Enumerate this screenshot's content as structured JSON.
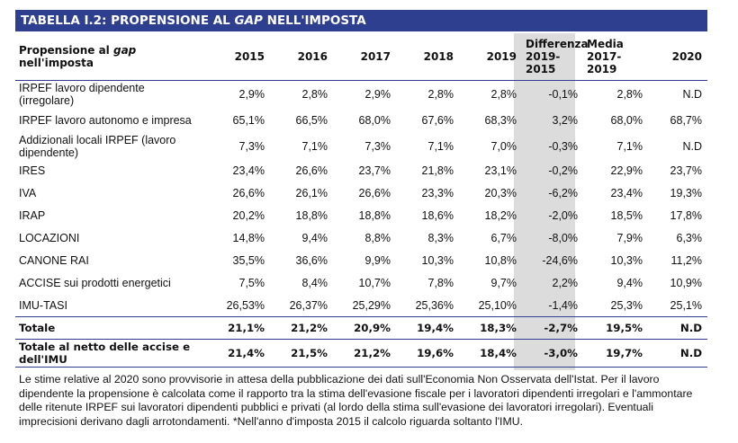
{
  "title": {
    "prefix": "TABELLA I.2: PROPENSIONE AL ",
    "italic": "GAP",
    "suffix": " NELL'IMPOSTA"
  },
  "header": {
    "first_pre": "Propensione al ",
    "first_italic": "gap",
    "first_post": " nell'imposta",
    "years": [
      "2015",
      "2016",
      "2017",
      "2018",
      "2019"
    ],
    "diff": [
      "Differenza",
      "2019-",
      "2015"
    ],
    "media": [
      "Media",
      "2017-",
      "2019"
    ],
    "last": "2020"
  },
  "rows": [
    {
      "label": "IRPEF lavoro dipendente (irregolare)",
      "values": [
        "2,9%",
        "2,8%",
        "2,9%",
        "2,8%",
        "2,8%"
      ],
      "diff": "-0,1%",
      "media": "2,8%",
      "y2020": "N.D"
    },
    {
      "label": "IRPEF lavoro autonomo e impresa",
      "values": [
        "65,1%",
        "66,5%",
        "68,0%",
        "67,6%",
        "68,3%"
      ],
      "diff": "3,2%",
      "media": "68,0%",
      "y2020": "68,7%"
    },
    {
      "label": "Addizionali locali IRPEF (lavoro dipendente)",
      "values": [
        "7,3%",
        "7,1%",
        "7,3%",
        "7,1%",
        "7,0%"
      ],
      "diff": "-0,3%",
      "media": "7,1%",
      "y2020": "N.D"
    },
    {
      "label": "IRES",
      "values": [
        "23,4%",
        "26,6%",
        "23,7%",
        "21,8%",
        "23,1%"
      ],
      "diff": "-0,2%",
      "media": "22,9%",
      "y2020": "23,7%"
    },
    {
      "label": "IVA",
      "values": [
        "26,6%",
        "26,1%",
        "26,6%",
        "23,3%",
        "20,3%"
      ],
      "diff": "-6,2%",
      "media": "23,4%",
      "y2020": "19,3%"
    },
    {
      "label": "IRAP",
      "values": [
        "20,2%",
        "18,8%",
        "18,8%",
        "18,6%",
        "18,2%"
      ],
      "diff": "-2,0%",
      "media": "18,5%",
      "y2020": "17,8%"
    },
    {
      "label": "LOCAZIONI",
      "values": [
        "14,8%",
        "9,4%",
        "8,8%",
        "8,3%",
        "6,7%"
      ],
      "diff": "-8,0%",
      "media": "7,9%",
      "y2020": "6,3%"
    },
    {
      "label": "CANONE RAI",
      "values": [
        "35,5%",
        "36,6%",
        "9,9%",
        "10,3%",
        "10,8%"
      ],
      "diff": "-24,6%",
      "media": "10,3%",
      "y2020": "11,2%"
    },
    {
      "label": "ACCISE sui prodotti energetici",
      "values": [
        "7,5%",
        "8,4%",
        "10,7%",
        "7,8%",
        "9,7%"
      ],
      "diff": "2,2%",
      "media": "9,4%",
      "y2020": "10,9%"
    },
    {
      "label": "IMU-TASI",
      "values": [
        "26,53%",
        "26,37%",
        "25,29%",
        "25,36%",
        "25,10%"
      ],
      "diff": "-1,4%",
      "media": "25,3%",
      "y2020": "25,1%"
    },
    {
      "label": "Totale",
      "values": [
        "21,1%",
        "21,2%",
        "20,9%",
        "19,4%",
        "18,3%"
      ],
      "diff": "-2,7%",
      "media": "19,5%",
      "y2020": "N.D"
    },
    {
      "label": "Totale al netto delle accise e dell'IMU",
      "values": [
        "21,4%",
        "21,5%",
        "21,2%",
        "19,6%",
        "18,4%"
      ],
      "diff": "-3,0%",
      "media": "19,7%",
      "y2020": "N.D"
    }
  ],
  "note": "Le stime relative al 2020 sono provvisorie in attesa della pubblicazione dei dati sull'Economia Non Osservata dell'Istat. Per il lavoro dipendente la propensione è calcolata come il rapporto tra la stima dell'evasione fiscale per i lavoratori dipendenti irregolari e l'ammontare delle ritenute IRPEF sui lavoratori dipendenti pubblici e privati (al lordo della stima sull'evasione dei lavoratori irregolari). Eventuali imprecisioni derivano dagli arrotondamenti. *Nell'anno d'imposta 2015 il calcolo riguarda soltanto l'IMU."
}
